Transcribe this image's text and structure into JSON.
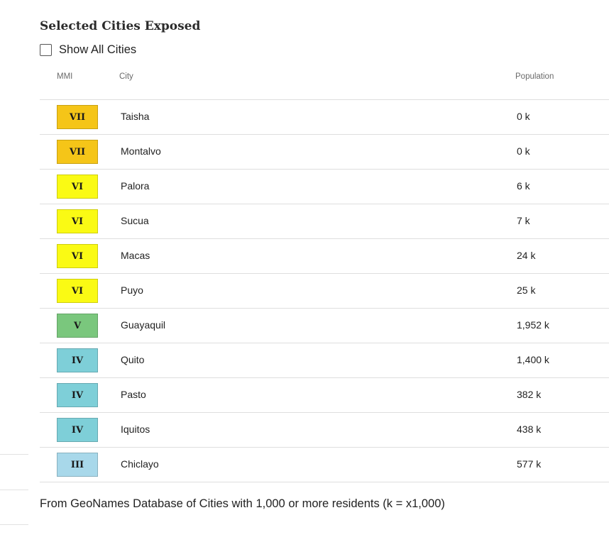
{
  "section": {
    "title": "Selected Cities Exposed",
    "show_all_label": "Show All Cities",
    "show_all_checked": false
  },
  "table": {
    "headers": {
      "mmi": "MMI",
      "city": "City",
      "population": "Population"
    },
    "rows": [
      {
        "mmi": "VII",
        "color": "#f5c518",
        "city": "Taisha",
        "population": "0 k"
      },
      {
        "mmi": "VII",
        "color": "#f5c518",
        "city": "Montalvo",
        "population": "0 k"
      },
      {
        "mmi": "VI",
        "color": "#fafa14",
        "city": "Palora",
        "population": "6 k"
      },
      {
        "mmi": "VI",
        "color": "#fafa14",
        "city": "Sucua",
        "population": "7 k"
      },
      {
        "mmi": "VI",
        "color": "#fafa14",
        "city": "Macas",
        "population": "24 k"
      },
      {
        "mmi": "VI",
        "color": "#fafa14",
        "city": "Puyo",
        "population": "25 k"
      },
      {
        "mmi": "V",
        "color": "#7ac77d",
        "city": "Guayaquil",
        "population": "1,952 k"
      },
      {
        "mmi": "IV",
        "color": "#7ecfd8",
        "city": "Quito",
        "population": "1,400 k"
      },
      {
        "mmi": "IV",
        "color": "#7ecfd8",
        "city": "Pasto",
        "population": "382 k"
      },
      {
        "mmi": "IV",
        "color": "#7ecfd8",
        "city": "Iquitos",
        "population": "438 k"
      },
      {
        "mmi": "III",
        "color": "#a8d8ea",
        "city": "Chiclayo",
        "population": "577 k"
      }
    ]
  },
  "footnote": "From GeoNames Database of Cities with 1,000 or more residents (k = x1,000)"
}
